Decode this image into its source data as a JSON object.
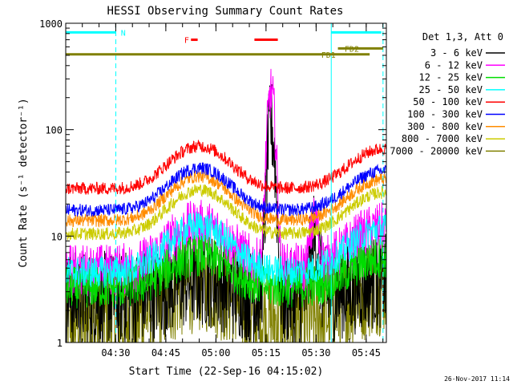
{
  "chart_data": {
    "type": "line",
    "title": "HESSI Observing Summary Count Rates",
    "xlabel": "Start Time (22-Sep-16 04:15:02)",
    "ylabel": "Count Rate (s⁻¹ detector⁻¹)",
    "y_scale": "log",
    "ylim": [
      1,
      1000
    ],
    "y_ticks": [
      "1",
      "10",
      "100",
      "1000"
    ],
    "x_range_minutes": [
      0,
      96
    ],
    "x_ticks": [
      {
        "label": "04:30",
        "minute": 14.97
      },
      {
        "label": "04:45",
        "minute": 29.97
      },
      {
        "label": "05:00",
        "minute": 44.97
      },
      {
        "label": "05:15",
        "minute": 59.97
      },
      {
        "label": "05:30",
        "minute": 74.97
      },
      {
        "label": "05:45",
        "minute": 89.97
      }
    ],
    "legend_header": "Det 1,3, Att 0",
    "legend_position": "right, outside plot",
    "footer_timestamp": "26-Nov-2017 11:14",
    "series": [
      {
        "name": "3 - 6 keV",
        "color": "#000000",
        "base": 2.6,
        "amp": 1.5,
        "noise": 0.45,
        "peaks": [
          {
            "minute": 61.5,
            "value": 105,
            "width": 1.3
          },
          {
            "minute": 74.5,
            "value": 7,
            "width": 1.5
          }
        ]
      },
      {
        "name": "6 - 12 keV",
        "color": "#ff00ff",
        "base": 4.8,
        "amp": 2.6,
        "noise": 0.25,
        "peaks": [
          {
            "minute": 61.5,
            "value": 220,
            "width": 1.3
          },
          {
            "minute": 74.5,
            "value": 9,
            "width": 1.5
          }
        ]
      },
      {
        "name": "12 - 25 keV",
        "color": "#00dd00",
        "base": 3.3,
        "amp": 2.0,
        "noise": 0.2,
        "peaks": []
      },
      {
        "name": "25 - 50 keV",
        "color": "#00ffff",
        "base": 4.6,
        "amp": 2.7,
        "noise": 0.15,
        "peaks": []
      },
      {
        "name": "50 - 100 keV",
        "color": "#ff0000",
        "base": 28,
        "amp": 2.5,
        "noise": 0.06,
        "peaks": []
      },
      {
        "name": "100 - 300 keV",
        "color": "#0000ff",
        "base": 17.5,
        "amp": 2.5,
        "noise": 0.06,
        "peaks": []
      },
      {
        "name": "300 - 800 keV",
        "color": "#ff8c00",
        "base": 14,
        "amp": 2.6,
        "noise": 0.06,
        "peaks": []
      },
      {
        "name": "800 - 7000 keV",
        "color": "#cccc00",
        "base": 10.5,
        "amp": 2.6,
        "noise": 0.06,
        "peaks": []
      },
      {
        "name": "7000 - 20000 keV",
        "color": "#808000",
        "base": 1.6,
        "amp": 2.4,
        "noise": 0.5,
        "peaks": []
      }
    ],
    "annotations": [
      {
        "label": "N",
        "color": "#00ffff",
        "start_minute": 0,
        "end_minute": 15,
        "value": 820,
        "label_minute": 16.5
      },
      {
        "label": "N",
        "color": "#00ffff",
        "start_minute": 79.5,
        "end_minute": 94.5,
        "value": 820,
        "label_minute": null
      },
      {
        "label": "F",
        "color": "#ff0000",
        "start_minute": 37.5,
        "end_minute": 39.5,
        "value": 700,
        "label_minute": 35.5
      },
      {
        "label": "",
        "color": "#ff0000",
        "start_minute": 56.5,
        "end_minute": 63.5,
        "value": 700,
        "label_minute": null
      },
      {
        "label": "FD1",
        "color": "#808000",
        "start_minute": 0,
        "end_minute": 91,
        "value": 510,
        "label_minute": 76.5
      },
      {
        "label": "FD2",
        "color": "#808000",
        "start_minute": 81.5,
        "end_minute": 95,
        "value": 580,
        "label_minute": 83.5
      }
    ],
    "vertical_markers": [
      {
        "color": "#00ffff",
        "minute": 15,
        "style": "dashed"
      },
      {
        "color": "#00ffff",
        "minute": 79.5,
        "style": "solid"
      },
      {
        "color": "#00ffff",
        "minute": 95,
        "style": "dashed"
      }
    ]
  }
}
